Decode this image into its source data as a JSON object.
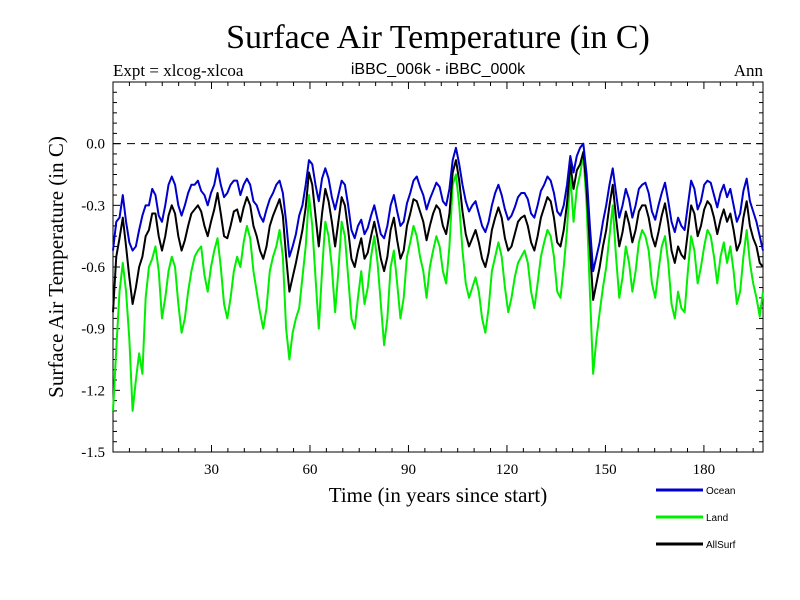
{
  "chart_data": {
    "type": "line",
    "title": "Surface Air Temperature (in C)",
    "subtitle_left": "Expt = xlcog-xlcoa",
    "subtitle_center": "iBBC_006k - iBBC_000k",
    "subtitle_right": "Ann",
    "xlabel": "Time (in years since start)",
    "ylabel": "Surface Air Temperature (in C)",
    "xlim": [
      0,
      198
    ],
    "ylim": [
      -1.5,
      0.3
    ],
    "xticks": [
      30,
      60,
      90,
      120,
      150,
      180
    ],
    "yticks": [
      -1.5,
      -1.2,
      -0.9,
      -0.6,
      -0.3,
      0.0
    ],
    "ytick_labels": [
      "-1.5",
      "-1.2",
      "-0.9",
      "-0.6",
      "-0.3",
      "0.0"
    ],
    "reference_line": 0.0,
    "series": [
      {
        "name": "Ocean",
        "color": "#0000cc",
        "values": [
          -0.52,
          -0.38,
          -0.36,
          -0.25,
          -0.38,
          -0.48,
          -0.52,
          -0.5,
          -0.42,
          -0.35,
          -0.3,
          -0.3,
          -0.22,
          -0.25,
          -0.35,
          -0.38,
          -0.3,
          -0.2,
          -0.16,
          -0.2,
          -0.3,
          -0.35,
          -0.3,
          -0.24,
          -0.2,
          -0.2,
          -0.18,
          -0.23,
          -0.25,
          -0.3,
          -0.24,
          -0.2,
          -0.12,
          -0.2,
          -0.26,
          -0.24,
          -0.2,
          -0.18,
          -0.18,
          -0.25,
          -0.2,
          -0.17,
          -0.2,
          -0.28,
          -0.3,
          -0.35,
          -0.38,
          -0.32,
          -0.27,
          -0.24,
          -0.2,
          -0.18,
          -0.24,
          -0.38,
          -0.55,
          -0.5,
          -0.44,
          -0.35,
          -0.3,
          -0.2,
          -0.08,
          -0.1,
          -0.2,
          -0.28,
          -0.17,
          -0.12,
          -0.17,
          -0.26,
          -0.32,
          -0.25,
          -0.18,
          -0.2,
          -0.3,
          -0.42,
          -0.46,
          -0.4,
          -0.37,
          -0.44,
          -0.41,
          -0.35,
          -0.3,
          -0.37,
          -0.44,
          -0.46,
          -0.4,
          -0.3,
          -0.25,
          -0.33,
          -0.4,
          -0.38,
          -0.29,
          -0.24,
          -0.18,
          -0.16,
          -0.21,
          -0.25,
          -0.32,
          -0.27,
          -0.23,
          -0.19,
          -0.21,
          -0.28,
          -0.3,
          -0.22,
          -0.08,
          -0.02,
          -0.1,
          -0.2,
          -0.28,
          -0.33,
          -0.3,
          -0.28,
          -0.34,
          -0.4,
          -0.43,
          -0.38,
          -0.3,
          -0.24,
          -0.2,
          -0.25,
          -0.32,
          -0.37,
          -0.35,
          -0.31,
          -0.26,
          -0.24,
          -0.24,
          -0.27,
          -0.34,
          -0.36,
          -0.3,
          -0.23,
          -0.2,
          -0.16,
          -0.18,
          -0.24,
          -0.33,
          -0.35,
          -0.3,
          -0.2,
          -0.06,
          -0.14,
          -0.06,
          -0.02,
          0.0,
          -0.15,
          -0.4,
          -0.62,
          -0.55,
          -0.48,
          -0.38,
          -0.3,
          -0.2,
          -0.12,
          -0.24,
          -0.36,
          -0.3,
          -0.22,
          -0.27,
          -0.36,
          -0.3,
          -0.22,
          -0.2,
          -0.19,
          -0.24,
          -0.33,
          -0.37,
          -0.3,
          -0.24,
          -0.19,
          -0.28,
          -0.38,
          -0.43,
          -0.36,
          -0.4,
          -0.42,
          -0.3,
          -0.18,
          -0.22,
          -0.32,
          -0.28,
          -0.2,
          -0.18,
          -0.19,
          -0.25,
          -0.31,
          -0.24,
          -0.2,
          -0.26,
          -0.22,
          -0.3,
          -0.38,
          -0.34,
          -0.23,
          -0.17,
          -0.28,
          -0.33,
          -0.38,
          -0.45,
          -0.52
        ]
      },
      {
        "name": "Land",
        "color": "#00ee00",
        "values": [
          -1.3,
          -1.0,
          -0.72,
          -0.58,
          -0.72,
          -0.95,
          -1.3,
          -1.15,
          -1.02,
          -1.12,
          -0.75,
          -0.6,
          -0.56,
          -0.5,
          -0.62,
          -0.85,
          -0.75,
          -0.62,
          -0.55,
          -0.6,
          -0.78,
          -0.92,
          -0.85,
          -0.72,
          -0.62,
          -0.55,
          -0.52,
          -0.5,
          -0.64,
          -0.72,
          -0.6,
          -0.52,
          -0.46,
          -0.6,
          -0.78,
          -0.85,
          -0.75,
          -0.62,
          -0.55,
          -0.6,
          -0.48,
          -0.4,
          -0.46,
          -0.62,
          -0.72,
          -0.82,
          -0.9,
          -0.8,
          -0.62,
          -0.55,
          -0.5,
          -0.42,
          -0.55,
          -0.9,
          -1.05,
          -0.92,
          -0.85,
          -0.8,
          -0.65,
          -0.5,
          -0.25,
          -0.4,
          -0.65,
          -0.9,
          -0.62,
          -0.38,
          -0.45,
          -0.6,
          -0.82,
          -0.62,
          -0.38,
          -0.45,
          -0.65,
          -0.85,
          -0.9,
          -0.75,
          -0.62,
          -0.78,
          -0.7,
          -0.55,
          -0.45,
          -0.58,
          -0.78,
          -0.98,
          -0.85,
          -0.6,
          -0.52,
          -0.68,
          -0.85,
          -0.75,
          -0.55,
          -0.48,
          -0.4,
          -0.45,
          -0.55,
          -0.62,
          -0.75,
          -0.6,
          -0.52,
          -0.45,
          -0.5,
          -0.62,
          -0.68,
          -0.5,
          -0.2,
          -0.15,
          -0.3,
          -0.52,
          -0.68,
          -0.75,
          -0.7,
          -0.65,
          -0.72,
          -0.85,
          -0.92,
          -0.8,
          -0.62,
          -0.55,
          -0.48,
          -0.55,
          -0.7,
          -0.82,
          -0.75,
          -0.65,
          -0.58,
          -0.55,
          -0.52,
          -0.58,
          -0.72,
          -0.8,
          -0.68,
          -0.55,
          -0.48,
          -0.42,
          -0.45,
          -0.55,
          -0.72,
          -0.75,
          -0.6,
          -0.42,
          -0.15,
          -0.38,
          -0.22,
          -0.15,
          -0.05,
          -0.3,
          -0.72,
          -1.12,
          -0.95,
          -0.82,
          -0.7,
          -0.6,
          -0.45,
          -0.3,
          -0.55,
          -0.75,
          -0.65,
          -0.5,
          -0.58,
          -0.72,
          -0.62,
          -0.48,
          -0.42,
          -0.45,
          -0.52,
          -0.68,
          -0.75,
          -0.62,
          -0.5,
          -0.45,
          -0.58,
          -0.78,
          -0.85,
          -0.72,
          -0.8,
          -0.82,
          -0.62,
          -0.45,
          -0.52,
          -0.68,
          -0.6,
          -0.5,
          -0.42,
          -0.45,
          -0.55,
          -0.68,
          -0.55,
          -0.48,
          -0.58,
          -0.5,
          -0.62,
          -0.78,
          -0.72,
          -0.55,
          -0.42,
          -0.58,
          -0.68,
          -0.75,
          -0.84,
          -0.72
        ]
      },
      {
        "name": "AllSurf",
        "color": "#000000",
        "values": [
          -0.82,
          -0.55,
          -0.46,
          -0.36,
          -0.5,
          -0.65,
          -0.78,
          -0.7,
          -0.6,
          -0.55,
          -0.45,
          -0.42,
          -0.34,
          -0.34,
          -0.45,
          -0.52,
          -0.45,
          -0.35,
          -0.3,
          -0.34,
          -0.45,
          -0.52,
          -0.47,
          -0.4,
          -0.34,
          -0.32,
          -0.3,
          -0.33,
          -0.4,
          -0.45,
          -0.38,
          -0.32,
          -0.24,
          -0.34,
          -0.45,
          -0.46,
          -0.4,
          -0.33,
          -0.32,
          -0.38,
          -0.31,
          -0.26,
          -0.3,
          -0.4,
          -0.45,
          -0.52,
          -0.56,
          -0.5,
          -0.4,
          -0.35,
          -0.31,
          -0.27,
          -0.35,
          -0.55,
          -0.72,
          -0.65,
          -0.58,
          -0.5,
          -0.42,
          -0.31,
          -0.14,
          -0.2,
          -0.35,
          -0.5,
          -0.34,
          -0.22,
          -0.28,
          -0.38,
          -0.5,
          -0.38,
          -0.26,
          -0.3,
          -0.42,
          -0.56,
          -0.6,
          -0.52,
          -0.46,
          -0.56,
          -0.53,
          -0.45,
          -0.38,
          -0.46,
          -0.56,
          -0.62,
          -0.55,
          -0.42,
          -0.36,
          -0.47,
          -0.56,
          -0.52,
          -0.4,
          -0.34,
          -0.27,
          -0.28,
          -0.33,
          -0.38,
          -0.47,
          -0.4,
          -0.34,
          -0.3,
          -0.32,
          -0.4,
          -0.44,
          -0.34,
          -0.14,
          -0.08,
          -0.18,
          -0.33,
          -0.44,
          -0.5,
          -0.46,
          -0.42,
          -0.48,
          -0.56,
          -0.6,
          -0.53,
          -0.42,
          -0.36,
          -0.31,
          -0.36,
          -0.46,
          -0.52,
          -0.5,
          -0.44,
          -0.38,
          -0.36,
          -0.35,
          -0.4,
          -0.48,
          -0.52,
          -0.45,
          -0.36,
          -0.31,
          -0.26,
          -0.28,
          -0.36,
          -0.48,
          -0.5,
          -0.42,
          -0.29,
          -0.1,
          -0.22,
          -0.13,
          -0.1,
          -0.04,
          -0.22,
          -0.5,
          -0.76,
          -0.68,
          -0.6,
          -0.5,
          -0.42,
          -0.3,
          -0.2,
          -0.36,
          -0.5,
          -0.43,
          -0.33,
          -0.39,
          -0.48,
          -0.42,
          -0.33,
          -0.3,
          -0.3,
          -0.36,
          -0.45,
          -0.5,
          -0.43,
          -0.35,
          -0.29,
          -0.39,
          -0.52,
          -0.58,
          -0.5,
          -0.54,
          -0.56,
          -0.43,
          -0.3,
          -0.34,
          -0.45,
          -0.4,
          -0.32,
          -0.28,
          -0.3,
          -0.36,
          -0.44,
          -0.37,
          -0.32,
          -0.38,
          -0.34,
          -0.42,
          -0.52,
          -0.48,
          -0.36,
          -0.28,
          -0.4,
          -0.46,
          -0.5,
          -0.58,
          -0.6
        ]
      }
    ]
  }
}
